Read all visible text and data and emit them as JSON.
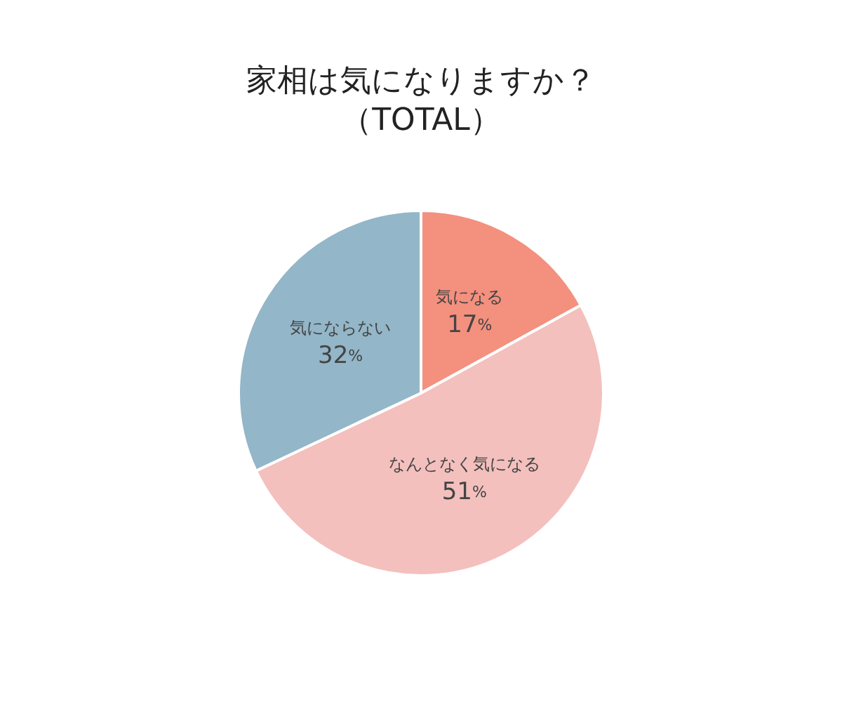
{
  "chart_data": {
    "type": "pie",
    "title": "家相は気になりますか？",
    "subtitle": "（TOTAL）",
    "categories": [
      "気になる",
      "なんとなく気になる",
      "気にならない"
    ],
    "values": [
      17,
      51,
      32
    ],
    "colors": [
      "#f4907e",
      "#f3c0bd",
      "#93b6c8"
    ],
    "value_labels": [
      "17%",
      "51%",
      "32%"
    ],
    "legend": false
  }
}
